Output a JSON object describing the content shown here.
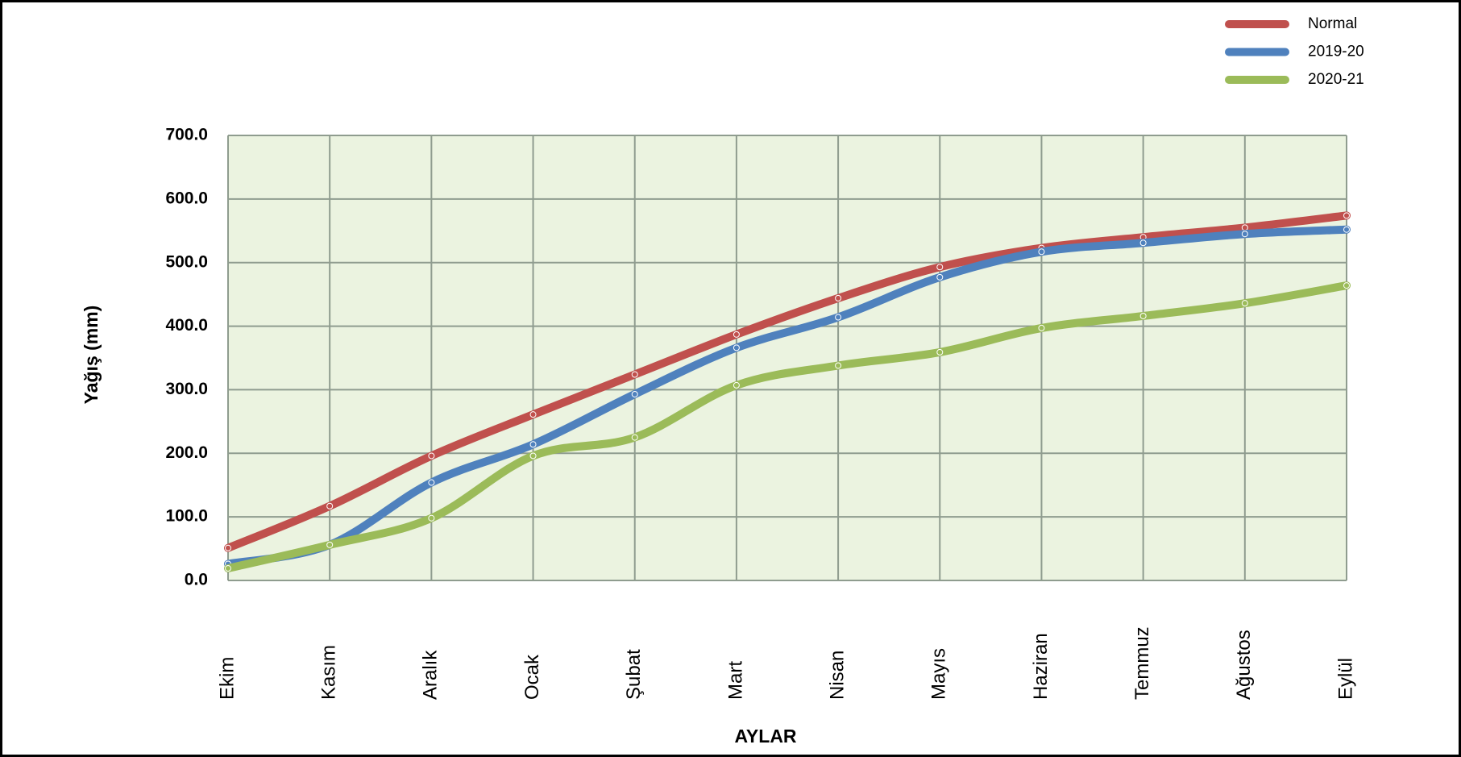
{
  "chart_data": {
    "type": "line",
    "x_label": "AYLAR",
    "y_label": "Yağış (mm)",
    "categories": [
      "Ekim",
      "Kasım",
      "Aralık",
      "Ocak",
      "Şubat",
      "Mart",
      "Nisan",
      "Mayıs",
      "Haziran",
      "Temmuz",
      "Ağustos",
      "Eylül"
    ],
    "series": [
      {
        "name": "Normal",
        "color": "#c0504d",
        "values": [
          51,
          117,
          196,
          261,
          324,
          387,
          444,
          493,
          523,
          540,
          555,
          574
        ]
      },
      {
        "name": "2019-20",
        "color": "#4f81bd",
        "values": [
          26,
          56,
          154,
          214,
          293,
          366,
          414,
          477,
          517,
          531,
          545,
          552
        ]
      },
      {
        "name": "2020-21",
        "color": "#9bbb59",
        "values": [
          19,
          56,
          98,
          196,
          225,
          307,
          338,
          359,
          397,
          416,
          436,
          464
        ]
      }
    ],
    "ylim": [
      0,
      700
    ],
    "yticks": [
      {
        "value": 0,
        "label": "0.0"
      },
      {
        "value": 100,
        "label": "100.0"
      },
      {
        "value": 200,
        "label": "200.0"
      },
      {
        "value": 300,
        "label": "300.0"
      },
      {
        "value": 400,
        "label": "400.0"
      },
      {
        "value": 500,
        "label": "500.0"
      },
      {
        "value": 600,
        "label": "600.0"
      },
      {
        "value": 700,
        "label": "700.0"
      }
    ],
    "grid": true,
    "legend": "top-right"
  }
}
